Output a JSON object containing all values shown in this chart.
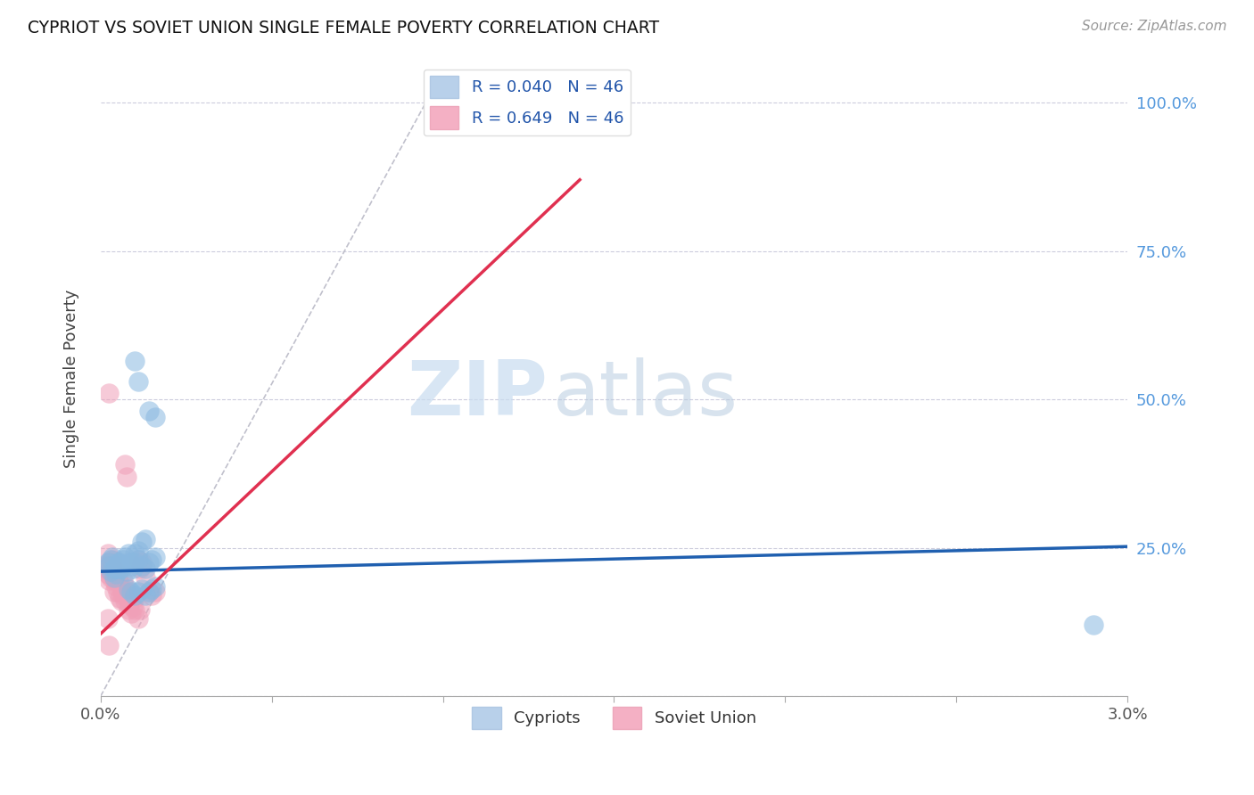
{
  "title": "CYPRIOT VS SOVIET UNION SINGLE FEMALE POVERTY CORRELATION CHART",
  "source": "Source: ZipAtlas.com",
  "ylabel": "Single Female Poverty",
  "xlim": [
    0.0,
    0.03
  ],
  "ylim": [
    0.0,
    1.07
  ],
  "xticks": [
    0.0,
    0.005,
    0.01,
    0.015,
    0.02,
    0.025,
    0.03
  ],
  "xticklabels": [
    "0.0%",
    "",
    "",
    "",
    "",
    "",
    "3.0%"
  ],
  "yticks_right": [
    0.0,
    0.25,
    0.5,
    0.75,
    1.0
  ],
  "ytick_labels_right": [
    "",
    "25.0%",
    "50.0%",
    "75.0%",
    "100.0%"
  ],
  "cypriot_color": "#8ab8e0",
  "soviet_color": "#f0a0b8",
  "blue_line_color": "#2060b0",
  "red_line_color": "#e03050",
  "diag_line_color": "#c0c0cc",
  "watermark_zip": "ZIP",
  "watermark_atlas": "atlas",
  "cypriot_points": [
    [
      0.0003,
      0.23
    ],
    [
      0.0004,
      0.215
    ],
    [
      0.00045,
      0.205
    ],
    [
      0.00025,
      0.22
    ],
    [
      0.0005,
      0.225
    ],
    [
      0.00035,
      0.235
    ],
    [
      0.0003,
      0.21
    ],
    [
      0.0004,
      0.2
    ],
    [
      0.00055,
      0.225
    ],
    [
      0.0006,
      0.22
    ],
    [
      0.00045,
      0.215
    ],
    [
      0.00065,
      0.23
    ],
    [
      0.0007,
      0.235
    ],
    [
      0.0006,
      0.215
    ],
    [
      0.0002,
      0.225
    ],
    [
      0.0008,
      0.24
    ],
    [
      0.00075,
      0.21
    ],
    [
      0.00055,
      0.215
    ],
    [
      0.00085,
      0.225
    ],
    [
      0.0009,
      0.22
    ],
    [
      0.00095,
      0.215
    ],
    [
      0.001,
      0.225
    ],
    [
      0.0011,
      0.23
    ],
    [
      0.0012,
      0.22
    ],
    [
      0.0013,
      0.215
    ],
    [
      0.0014,
      0.225
    ],
    [
      0.0015,
      0.23
    ],
    [
      0.0016,
      0.235
    ],
    [
      0.001,
      0.24
    ],
    [
      0.0011,
      0.245
    ],
    [
      0.0012,
      0.26
    ],
    [
      0.0013,
      0.265
    ],
    [
      0.0009,
      0.175
    ],
    [
      0.001,
      0.17
    ],
    [
      0.0011,
      0.175
    ],
    [
      0.0012,
      0.18
    ],
    [
      0.0013,
      0.17
    ],
    [
      0.0014,
      0.175
    ],
    [
      0.0015,
      0.18
    ],
    [
      0.0008,
      0.18
    ],
    [
      0.0016,
      0.185
    ],
    [
      0.001,
      0.565
    ],
    [
      0.0011,
      0.53
    ],
    [
      0.0014,
      0.48
    ],
    [
      0.0016,
      0.47
    ],
    [
      0.029,
      0.12
    ]
  ],
  "soviet_points": [
    [
      0.0001,
      0.22
    ],
    [
      0.00015,
      0.215
    ],
    [
      0.0002,
      0.205
    ],
    [
      0.0002,
      0.24
    ],
    [
      0.00025,
      0.195
    ],
    [
      0.00025,
      0.21
    ],
    [
      0.0003,
      0.225
    ],
    [
      0.0003,
      0.2
    ],
    [
      0.00035,
      0.215
    ],
    [
      0.00035,
      0.23
    ],
    [
      0.0004,
      0.175
    ],
    [
      0.0004,
      0.195
    ],
    [
      0.00045,
      0.21
    ],
    [
      0.00045,
      0.185
    ],
    [
      0.0005,
      0.2
    ],
    [
      0.0005,
      0.175
    ],
    [
      0.00055,
      0.19
    ],
    [
      0.00055,
      0.165
    ],
    [
      0.0006,
      0.18
    ],
    [
      0.0006,
      0.16
    ],
    [
      0.00065,
      0.195
    ],
    [
      0.00065,
      0.17
    ],
    [
      0.0007,
      0.185
    ],
    [
      0.0007,
      0.16
    ],
    [
      0.00075,
      0.175
    ],
    [
      0.0008,
      0.165
    ],
    [
      0.0008,
      0.145
    ],
    [
      0.00085,
      0.155
    ],
    [
      0.0009,
      0.14
    ],
    [
      0.00095,
      0.15
    ],
    [
      0.001,
      0.165
    ],
    [
      0.001,
      0.145
    ],
    [
      0.0011,
      0.23
    ],
    [
      0.00115,
      0.215
    ],
    [
      0.0012,
      0.225
    ],
    [
      0.0013,
      0.2
    ],
    [
      0.0014,
      0.175
    ],
    [
      0.0015,
      0.17
    ],
    [
      0.0016,
      0.175
    ],
    [
      0.00025,
      0.51
    ],
    [
      0.0007,
      0.39
    ],
    [
      0.00075,
      0.37
    ],
    [
      0.0011,
      0.13
    ],
    [
      0.00115,
      0.145
    ],
    [
      0.0002,
      0.13
    ],
    [
      0.00025,
      0.085
    ]
  ],
  "blue_line": {
    "x": [
      0.0,
      0.03
    ],
    "y": [
      0.21,
      0.252
    ]
  },
  "red_line": {
    "x": [
      0.0,
      0.014
    ],
    "y": [
      0.105,
      0.87
    ]
  },
  "diag_line": {
    "x": [
      0.0,
      0.0095
    ],
    "y": [
      0.0,
      1.0
    ]
  }
}
